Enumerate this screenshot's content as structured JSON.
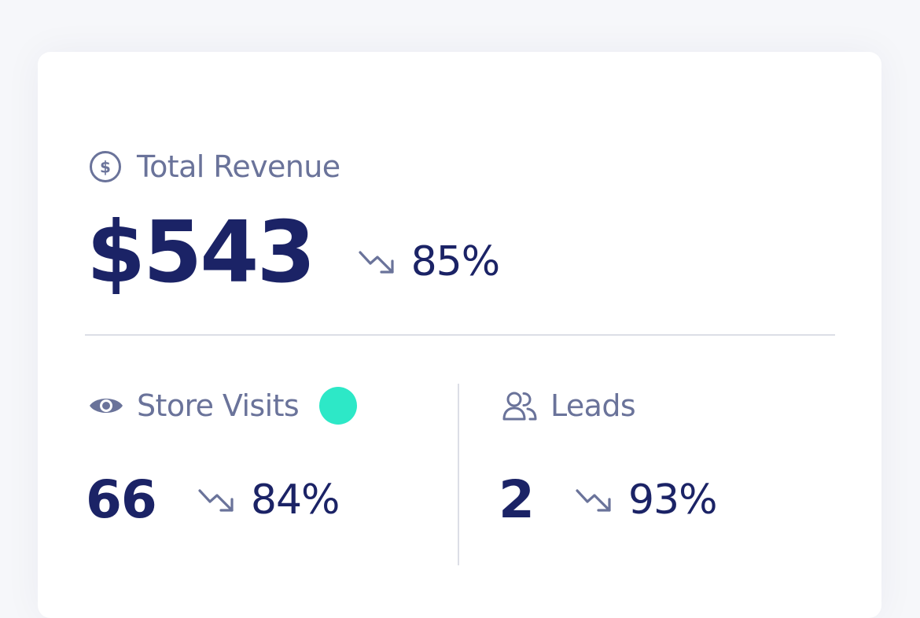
{
  "colors": {
    "primary_text": "#1b2366",
    "muted_text": "#6a739a",
    "status_dot": "#2de8c7"
  },
  "revenue": {
    "label": "Total Revenue",
    "icon": "dollar-circle-icon",
    "value": "$543",
    "change": "85%",
    "change_icon": "trend-down-icon"
  },
  "store_visits": {
    "label": "Store Visits",
    "icon": "eye-icon",
    "value": "66",
    "change": "84%",
    "change_icon": "trend-down-icon"
  },
  "leads": {
    "label": "Leads",
    "icon": "users-icon",
    "value": "2",
    "change": "93%",
    "change_icon": "trend-down-icon"
  }
}
